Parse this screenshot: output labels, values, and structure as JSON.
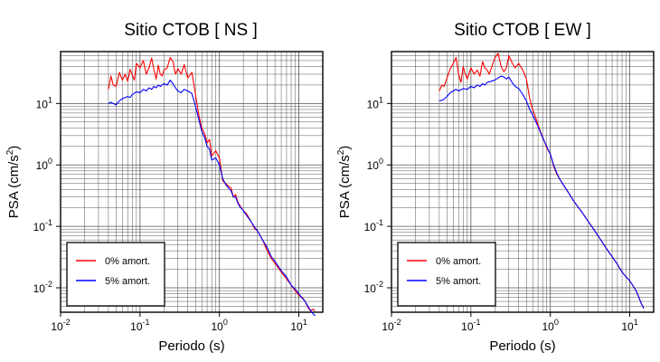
{
  "chart_data": [
    {
      "type": "line",
      "title": "Sitio CTOB [ NS ]",
      "xlabel": "Periodo (s)",
      "ylabel": {
        "base": "PSA (cm/s",
        "sup": "2",
        "close": ")"
      },
      "xscale": "log",
      "yscale": "log",
      "xlim": [
        0.01,
        20
      ],
      "ylim": [
        0.004,
        70
      ],
      "grid": true,
      "legend_position": "bottom-left",
      "x_ticks": [
        {
          "value": 0.01,
          "base": "10",
          "exp": "-2"
        },
        {
          "value": 0.1,
          "base": "10",
          "exp": "-1"
        },
        {
          "value": 1,
          "base": "10",
          "exp": "0"
        },
        {
          "value": 10,
          "base": "10",
          "exp": "1"
        }
      ],
      "y_ticks": [
        {
          "value": 0.01,
          "base": "10",
          "exp": "-2"
        },
        {
          "value": 0.1,
          "base": "10",
          "exp": "-1"
        },
        {
          "value": 1,
          "base": "10",
          "exp": "0"
        },
        {
          "value": 10,
          "base": "10",
          "exp": "1"
        }
      ],
      "series": [
        {
          "name": "0% amort.",
          "color": "#ff0000",
          "points": [
            [
              0.04,
              17
            ],
            [
              0.043,
              28
            ],
            [
              0.046,
              20
            ],
            [
              0.05,
              19
            ],
            [
              0.055,
              32
            ],
            [
              0.06,
              24
            ],
            [
              0.065,
              30
            ],
            [
              0.07,
              23
            ],
            [
              0.075,
              36
            ],
            [
              0.08,
              29
            ],
            [
              0.085,
              24
            ],
            [
              0.09,
              45
            ],
            [
              0.1,
              38
            ],
            [
              0.11,
              50
            ],
            [
              0.12,
              30
            ],
            [
              0.13,
              38
            ],
            [
              0.14,
              55
            ],
            [
              0.15,
              35
            ],
            [
              0.16,
              25
            ],
            [
              0.17,
              42
            ],
            [
              0.18,
              30
            ],
            [
              0.19,
              28
            ],
            [
              0.2,
              35
            ],
            [
              0.22,
              38
            ],
            [
              0.24,
              56
            ],
            [
              0.26,
              48
            ],
            [
              0.28,
              30
            ],
            [
              0.3,
              37
            ],
            [
              0.33,
              30
            ],
            [
              0.36,
              43
            ],
            [
              0.4,
              26
            ],
            [
              0.45,
              32
            ],
            [
              0.5,
              14
            ],
            [
              0.55,
              6.5
            ],
            [
              0.6,
              4
            ],
            [
              0.65,
              3.2
            ],
            [
              0.7,
              2.3
            ],
            [
              0.75,
              2.6
            ],
            [
              0.8,
              1.4
            ],
            [
              0.9,
              1.7
            ],
            [
              1.0,
              1.3
            ],
            [
              1.1,
              0.55
            ],
            [
              1.2,
              0.5
            ],
            [
              1.3,
              0.45
            ],
            [
              1.4,
              0.42
            ],
            [
              1.5,
              0.3
            ],
            [
              1.6,
              0.33
            ],
            [
              1.7,
              0.25
            ],
            [
              1.8,
              0.22
            ],
            [
              2.0,
              0.18
            ],
            [
              2.2,
              0.16
            ],
            [
              2.5,
              0.12
            ],
            [
              2.8,
              0.09
            ],
            [
              3.0,
              0.085
            ],
            [
              3.5,
              0.06
            ],
            [
              4.0,
              0.04
            ],
            [
              4.5,
              0.03
            ],
            [
              5.0,
              0.025
            ],
            [
              6.0,
              0.018
            ],
            [
              7.0,
              0.014
            ],
            [
              8.0,
              0.011
            ],
            [
              9.0,
              0.009
            ],
            [
              10,
              0.0075
            ],
            [
              11,
              0.007
            ],
            [
              12,
              0.006
            ],
            [
              13,
              0.0048
            ],
            [
              14,
              0.0042
            ],
            [
              15,
              0.0045
            ],
            [
              16,
              0.0042
            ]
          ]
        },
        {
          "name": "5% amort.",
          "color": "#0000ff",
          "points": [
            [
              0.04,
              10
            ],
            [
              0.043,
              10.5
            ],
            [
              0.046,
              10
            ],
            [
              0.05,
              9.5
            ],
            [
              0.055,
              11
            ],
            [
              0.06,
              12
            ],
            [
              0.065,
              12.5
            ],
            [
              0.07,
              13
            ],
            [
              0.075,
              12.5
            ],
            [
              0.08,
              14
            ],
            [
              0.09,
              15.5
            ],
            [
              0.1,
              15
            ],
            [
              0.11,
              17
            ],
            [
              0.12,
              16
            ],
            [
              0.13,
              18
            ],
            [
              0.14,
              17
            ],
            [
              0.15,
              19
            ],
            [
              0.16,
              18
            ],
            [
              0.17,
              20
            ],
            [
              0.18,
              19
            ],
            [
              0.2,
              21
            ],
            [
              0.22,
              20
            ],
            [
              0.24,
              24
            ],
            [
              0.26,
              21
            ],
            [
              0.28,
              18
            ],
            [
              0.3,
              16
            ],
            [
              0.33,
              15
            ],
            [
              0.36,
              17
            ],
            [
              0.4,
              16
            ],
            [
              0.45,
              14.5
            ],
            [
              0.5,
              9
            ],
            [
              0.55,
              5.5
            ],
            [
              0.6,
              3.5
            ],
            [
              0.65,
              2.8
            ],
            [
              0.7,
              2.0
            ],
            [
              0.75,
              1.8
            ],
            [
              0.8,
              1.2
            ],
            [
              0.9,
              1.3
            ],
            [
              1.0,
              1.0
            ],
            [
              1.1,
              0.6
            ],
            [
              1.2,
              0.48
            ],
            [
              1.3,
              0.42
            ],
            [
              1.4,
              0.38
            ],
            [
              1.5,
              0.3
            ],
            [
              1.6,
              0.3
            ],
            [
              1.7,
              0.24
            ],
            [
              1.8,
              0.21
            ],
            [
              2.0,
              0.18
            ],
            [
              2.2,
              0.15
            ],
            [
              2.5,
              0.12
            ],
            [
              2.8,
              0.095
            ],
            [
              3.0,
              0.085
            ],
            [
              3.5,
              0.06
            ],
            [
              4.0,
              0.045
            ],
            [
              4.5,
              0.032
            ],
            [
              5.0,
              0.027
            ],
            [
              6.0,
              0.019
            ],
            [
              7.0,
              0.015
            ],
            [
              8.0,
              0.011
            ],
            [
              9.0,
              0.0095
            ],
            [
              10,
              0.008
            ],
            [
              11,
              0.0068
            ],
            [
              12,
              0.006
            ],
            [
              13,
              0.005
            ],
            [
              14,
              0.0043
            ],
            [
              15,
              0.0038
            ],
            [
              16,
              0.0035
            ]
          ]
        }
      ]
    },
    {
      "type": "line",
      "title": "Sitio CTOB [ EW ]",
      "xlabel": "Periodo (s)",
      "ylabel": {
        "base": "PSA (cm/s",
        "sup": "2",
        "close": ")"
      },
      "xscale": "log",
      "yscale": "log",
      "xlim": [
        0.01,
        20
      ],
      "ylim": [
        0.004,
        70
      ],
      "grid": true,
      "legend_position": "bottom-left",
      "x_ticks": [
        {
          "value": 0.01,
          "base": "10",
          "exp": "-2"
        },
        {
          "value": 0.1,
          "base": "10",
          "exp": "-1"
        },
        {
          "value": 1,
          "base": "10",
          "exp": "0"
        },
        {
          "value": 10,
          "base": "10",
          "exp": "1"
        }
      ],
      "y_ticks": [
        {
          "value": 0.01,
          "base": "10",
          "exp": "-2"
        },
        {
          "value": 0.1,
          "base": "10",
          "exp": "-1"
        },
        {
          "value": 1,
          "base": "10",
          "exp": "0"
        },
        {
          "value": 10,
          "base": "10",
          "exp": "1"
        }
      ],
      "series": [
        {
          "name": "0% amort.",
          "color": "#ff0000",
          "points": [
            [
              0.04,
              16
            ],
            [
              0.043,
              20
            ],
            [
              0.046,
              19
            ],
            [
              0.05,
              26
            ],
            [
              0.055,
              37
            ],
            [
              0.06,
              45
            ],
            [
              0.065,
              56
            ],
            [
              0.07,
              30
            ],
            [
              0.075,
              22
            ],
            [
              0.08,
              40
            ],
            [
              0.085,
              30
            ],
            [
              0.09,
              25
            ],
            [
              0.1,
              38
            ],
            [
              0.11,
              30
            ],
            [
              0.12,
              35
            ],
            [
              0.13,
              28
            ],
            [
              0.14,
              48
            ],
            [
              0.15,
              38
            ],
            [
              0.16,
              35
            ],
            [
              0.17,
              30
            ],
            [
              0.18,
              37
            ],
            [
              0.2,
              55
            ],
            [
              0.22,
              66
            ],
            [
              0.24,
              40
            ],
            [
              0.26,
              33
            ],
            [
              0.28,
              38
            ],
            [
              0.3,
              60
            ],
            [
              0.33,
              46
            ],
            [
              0.36,
              38
            ],
            [
              0.4,
              45
            ],
            [
              0.45,
              35
            ],
            [
              0.5,
              25
            ],
            [
              0.55,
              12
            ],
            [
              0.6,
              8
            ],
            [
              0.65,
              6
            ],
            [
              0.7,
              4.5
            ],
            [
              0.75,
              3.5
            ],
            [
              0.8,
              2.9
            ],
            [
              0.9,
              1.9
            ],
            [
              1.0,
              1.5
            ],
            [
              1.1,
              0.95
            ],
            [
              1.2,
              0.72
            ],
            [
              1.3,
              0.6
            ],
            [
              1.5,
              0.45
            ],
            [
              1.7,
              0.35
            ],
            [
              2.0,
              0.25
            ],
            [
              2.5,
              0.17
            ],
            [
              3.0,
              0.12
            ],
            [
              3.5,
              0.09
            ],
            [
              4.0,
              0.07
            ],
            [
              5.0,
              0.045
            ],
            [
              6.0,
              0.032
            ],
            [
              7.0,
              0.024
            ],
            [
              8.0,
              0.018
            ],
            [
              9.0,
              0.015
            ],
            [
              10,
              0.013
            ],
            [
              12,
              0.009
            ],
            [
              13,
              0.007
            ],
            [
              14,
              0.0055
            ],
            [
              15,
              0.0047
            ]
          ]
        },
        {
          "name": "5% amort.",
          "color": "#0000ff",
          "points": [
            [
              0.04,
              11
            ],
            [
              0.045,
              11.5
            ],
            [
              0.05,
              13
            ],
            [
              0.055,
              15
            ],
            [
              0.06,
              16
            ],
            [
              0.065,
              17
            ],
            [
              0.07,
              16
            ],
            [
              0.08,
              17.5
            ],
            [
              0.09,
              17
            ],
            [
              0.1,
              19
            ],
            [
              0.11,
              18
            ],
            [
              0.12,
              20
            ],
            [
              0.13,
              19
            ],
            [
              0.14,
              21
            ],
            [
              0.15,
              20
            ],
            [
              0.16,
              22
            ],
            [
              0.18,
              23
            ],
            [
              0.2,
              24
            ],
            [
              0.22,
              26
            ],
            [
              0.24,
              28
            ],
            [
              0.26,
              27
            ],
            [
              0.28,
              25
            ],
            [
              0.3,
              27
            ],
            [
              0.33,
              22
            ],
            [
              0.36,
              19
            ],
            [
              0.4,
              17.5
            ],
            [
              0.45,
              14
            ],
            [
              0.5,
              11
            ],
            [
              0.55,
              8
            ],
            [
              0.6,
              6.5
            ],
            [
              0.65,
              5.2
            ],
            [
              0.7,
              4.2
            ],
            [
              0.75,
              3.4
            ],
            [
              0.8,
              2.8
            ],
            [
              0.9,
              2.0
            ],
            [
              1.0,
              1.5
            ],
            [
              1.1,
              1.0
            ],
            [
              1.2,
              0.75
            ],
            [
              1.3,
              0.6
            ],
            [
              1.5,
              0.45
            ],
            [
              1.7,
              0.35
            ],
            [
              2.0,
              0.25
            ],
            [
              2.5,
              0.17
            ],
            [
              3.0,
              0.12
            ],
            [
              3.5,
              0.09
            ],
            [
              4.0,
              0.07
            ],
            [
              5.0,
              0.045
            ],
            [
              6.0,
              0.032
            ],
            [
              7.0,
              0.024
            ],
            [
              8.0,
              0.018
            ],
            [
              9.0,
              0.015
            ],
            [
              10,
              0.013
            ],
            [
              12,
              0.009
            ],
            [
              13,
              0.007
            ],
            [
              14,
              0.0055
            ],
            [
              15,
              0.0046
            ]
          ]
        }
      ]
    }
  ]
}
